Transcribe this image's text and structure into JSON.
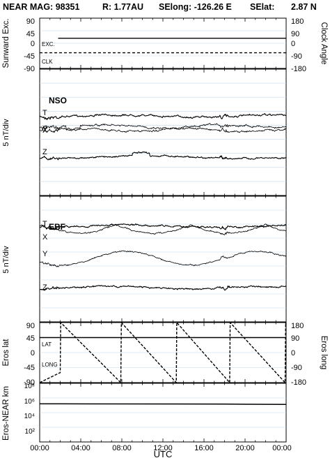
{
  "header": {
    "instrument": "NEAR MAG: 98351",
    "distance": "R: 1.77AU",
    "selong": "SElong: -126.26 E",
    "selat": "SElat:",
    "selat_value": "2.87 N"
  },
  "chart_data": [
    {
      "type": "line",
      "panel": "sunward-clock",
      "ylabel": "Sunward Exc.",
      "ylabel_right": "Clock Angle",
      "yticks": [
        "90",
        "45",
        "0",
        "-45",
        "-90"
      ],
      "yticks_right": [
        "180",
        "90",
        "0",
        "-90",
        "-180"
      ],
      "ylim": [
        -90,
        90
      ],
      "ylim_right": [
        -180,
        180
      ],
      "series": [
        {
          "name": "EXC.",
          "style": "solid",
          "x": [
            1.8,
            24
          ],
          "y": [
            18,
            18
          ]
        },
        {
          "name": "CLK",
          "style": "dashed",
          "x": [
            0,
            24
          ],
          "y": [
            -34,
            -34
          ]
        }
      ]
    },
    {
      "type": "line",
      "panel": "nso",
      "title": "NSO",
      "ylabel": "5 nT/div",
      "series_names": [
        "T",
        "X",
        "Y",
        "Z"
      ]
    },
    {
      "type": "line",
      "panel": "ebf",
      "title": "EBF",
      "ylabel": "5 nT/div",
      "series_names": [
        "T",
        "X",
        "Y",
        "Z"
      ]
    },
    {
      "type": "line",
      "panel": "eros-position",
      "ylabel": "Eros lat",
      "ylabel_right": "Eros long",
      "yticks": [
        "90",
        "45",
        "0",
        "-45",
        "-90"
      ],
      "yticks_right": [
        "180",
        "90",
        "0",
        "-90",
        "-180"
      ],
      "ylim": [
        -90,
        90
      ],
      "ylim_right": [
        -180,
        180
      ],
      "series": [
        {
          "name": "LAT",
          "style": "solid",
          "x": [
            0,
            24
          ],
          "y": [
            45,
            45
          ]
        },
        {
          "name": "LONG",
          "style": "dashed",
          "x": [
            0,
            2.0,
            2.05,
            7.9,
            7.95,
            13.3,
            13.35,
            18.5,
            18.55,
            23.9,
            23.95,
            24
          ],
          "y": [
            -180,
            -120,
            180,
            -180,
            180,
            -180,
            180,
            -180,
            180,
            -180,
            180,
            160
          ]
        }
      ]
    },
    {
      "type": "line",
      "panel": "range",
      "ylabel": "Eros-NEAR km",
      "yscale": "log",
      "yticks": [
        "10⁸",
        "10⁶",
        "10⁴",
        "10²"
      ],
      "ylim": [
        100,
        100000000
      ],
      "series": [
        {
          "name": "range",
          "style": "solid",
          "x": [
            0,
            2.0,
            18.0,
            20.0,
            24
          ],
          "y": [
            800000,
            790000,
            760000,
            720000,
            700000
          ]
        }
      ]
    }
  ],
  "xaxis": {
    "label": "UTC",
    "ticks": [
      "00:00",
      "04:00",
      "08:00",
      "12:00",
      "16:00",
      "20:00",
      "00:00"
    ],
    "range": [
      0,
      24
    ]
  },
  "colors": {
    "trace": "#000000",
    "grid": "#c4d7ee"
  }
}
